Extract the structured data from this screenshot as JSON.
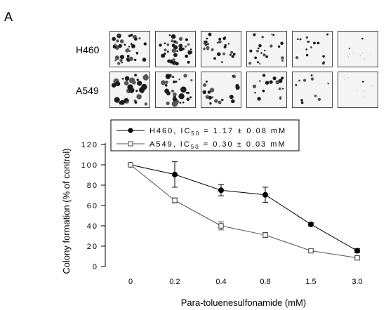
{
  "figure": {
    "panel_label": "A",
    "rows": [
      {
        "label": "H460",
        "plate_density": [
          1.0,
          1.0,
          0.7,
          0.55,
          0.4,
          0.06
        ]
      },
      {
        "label": "A549",
        "plate_density": [
          1.0,
          0.9,
          0.55,
          0.5,
          0.3,
          0.02
        ]
      }
    ]
  },
  "chart_data": {
    "type": "line",
    "xlabel": "Para-toluenesulfonamide (mM)",
    "ylabel": "Colony formation (% of control)",
    "categories": [
      "0",
      "0.2",
      "0.4",
      "0.8",
      "1.5",
      "3.0"
    ],
    "ylim": [
      0,
      120
    ],
    "yticks": [
      0,
      20,
      40,
      60,
      80,
      100,
      120
    ],
    "grid": false,
    "legend_position": "top",
    "series": [
      {
        "legend_text": "H460, IC",
        "legend_sub": "50",
        "legend_value": "= 1.17 ± 0.08 mM",
        "marker": "filled-circle",
        "color": "#000000",
        "values": [
          100,
          90.5,
          75,
          70.5,
          41.5,
          15.5
        ],
        "errors": [
          0,
          12.5,
          5.5,
          7.5,
          1.5,
          2
        ]
      },
      {
        "legend_text": "A549, IC",
        "legend_sub": "50",
        "legend_value": "= 0.30 ± 0.03 mM",
        "marker": "open-square",
        "color": "#555555",
        "values": [
          100,
          65,
          40,
          31,
          15.5,
          8.5
        ],
        "errors": [
          0,
          2.5,
          4,
          2.5,
          1.2,
          1.5
        ]
      }
    ]
  }
}
